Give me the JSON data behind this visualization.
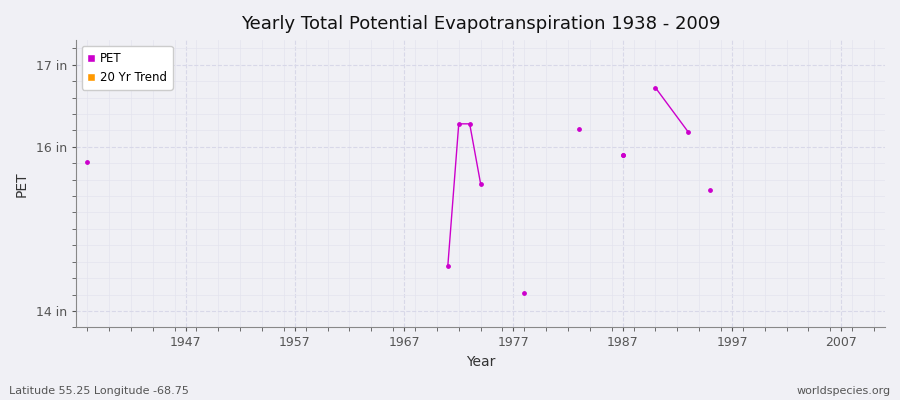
{
  "title": "Yearly Total Potential Evapotranspiration 1938 - 2009",
  "xlabel": "Year",
  "ylabel": "PET",
  "subtitle_left": "Latitude 55.25 Longitude -68.75",
  "subtitle_right": "worldspecies.org",
  "bg_color": "#f0f0f5",
  "plot_bg_color": "#f0f0f5",
  "grid_major_color": "#d8d8e8",
  "grid_minor_color": "#e4e4ee",
  "ylim": [
    13.8,
    17.3
  ],
  "xlim": [
    1937,
    2011
  ],
  "yticks": [
    14,
    16,
    17
  ],
  "ytick_labels": [
    "14 in",
    "16 in",
    "17 in"
  ],
  "xticks": [
    1947,
    1957,
    1967,
    1977,
    1987,
    1997,
    2007
  ],
  "pet_color": "#cc00cc",
  "trend_color": "#ff9900",
  "connected_segments": [
    [
      [
        1971,
        14.55
      ],
      [
        1972,
        16.28
      ],
      [
        1973,
        16.28
      ],
      [
        1974,
        15.55
      ]
    ],
    [
      [
        1990,
        16.72
      ],
      [
        1993,
        16.18
      ]
    ]
  ],
  "isolated_points": [
    [
      1938,
      15.82
    ],
    [
      1978,
      14.22
    ],
    [
      1983,
      16.22
    ],
    [
      1987,
      15.9
    ],
    [
      1987,
      15.9
    ],
    [
      1995,
      15.47
    ]
  ]
}
